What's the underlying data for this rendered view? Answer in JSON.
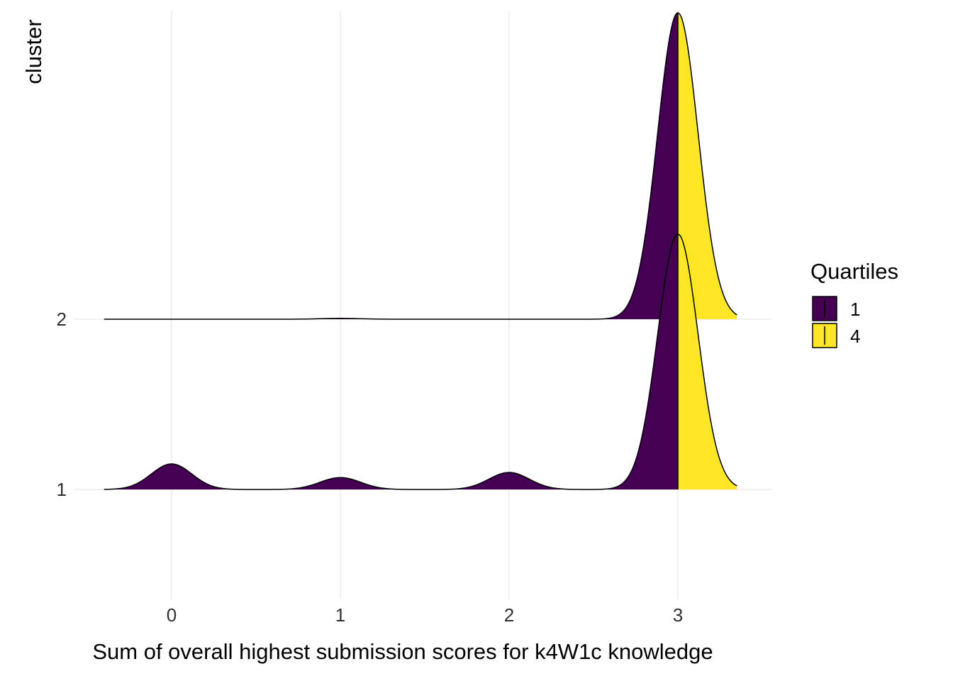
{
  "chart_data": {
    "type": "ridgeline",
    "xlabel": "Sum of overall highest submission scores for k4W1c knowledge",
    "ylabel": "cluster",
    "x_ticks": [
      0,
      1,
      2,
      3
    ],
    "xlim": [
      -0.4,
      3.35
    ],
    "categories": [
      "1",
      "2"
    ],
    "grid": true,
    "legend": {
      "title": "Quartiles",
      "position": "right",
      "entries": [
        {
          "label": "1",
          "color": "#440154"
        },
        {
          "label": "4",
          "color": "#FDE725"
        }
      ]
    },
    "quartile_split_x": 3,
    "series": [
      {
        "category": "1",
        "peaks": [
          {
            "x": 0,
            "height": 0.15
          },
          {
            "x": 1,
            "height": 0.07
          },
          {
            "x": 2,
            "height": 0.1
          },
          {
            "x": 3,
            "height": 1.5
          }
        ]
      },
      {
        "category": "2",
        "peaks": [
          {
            "x": 1,
            "height": 0.005
          },
          {
            "x": 3,
            "height": 1.8
          }
        ]
      }
    ]
  }
}
